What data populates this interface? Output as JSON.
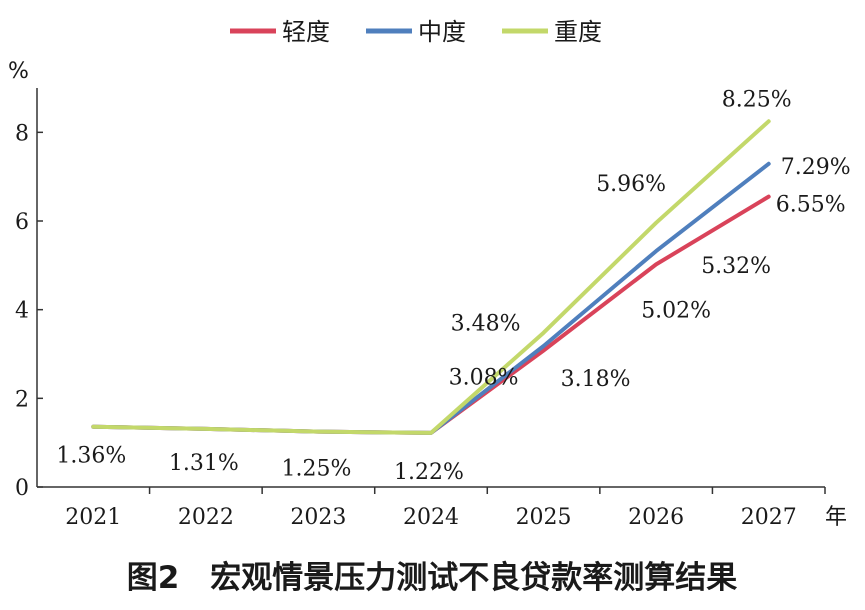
{
  "chart_data": {
    "type": "line",
    "title": "图2　宏观情景压力测试不良贷款率测算结果",
    "ylabel": "%",
    "xlabel": "年",
    "categories": [
      "2021",
      "2022",
      "2023",
      "2024",
      "2025",
      "2026",
      "2027"
    ],
    "yticks": [
      "0",
      "2",
      "4",
      "6",
      "8"
    ],
    "ylim": [
      0,
      9
    ],
    "grid": false,
    "legend_position": "top-center",
    "series": [
      {
        "name": "轻度",
        "color": "#d9435a",
        "values": [
          1.36,
          1.31,
          1.25,
          1.22,
          3.08,
          5.02,
          6.55
        ],
        "labels": [
          "",
          "",
          "",
          "",
          "3.08%",
          "5.02%",
          "6.55%"
        ]
      },
      {
        "name": "中度",
        "color": "#4f7fbd",
        "values": [
          1.36,
          1.31,
          1.25,
          1.22,
          3.18,
          5.32,
          7.29
        ],
        "labels": [
          "1.36%",
          "1.31%",
          "1.25%",
          "1.22%",
          "3.18%",
          "5.32%",
          "7.29%"
        ]
      },
      {
        "name": "重度",
        "color": "#c3d86a",
        "values": [
          1.36,
          1.31,
          1.25,
          1.22,
          3.48,
          5.96,
          8.25
        ],
        "labels": [
          "",
          "",
          "",
          "",
          "3.48%",
          "5.96%",
          "8.25%"
        ]
      }
    ]
  }
}
